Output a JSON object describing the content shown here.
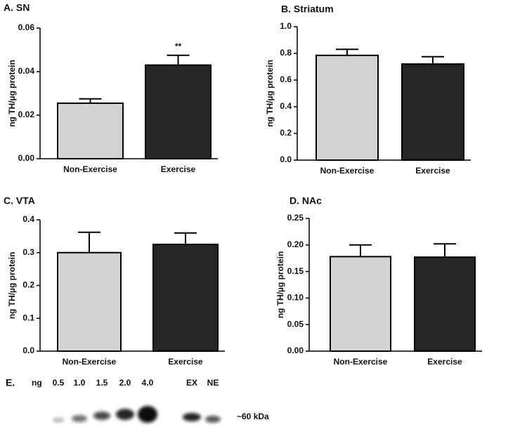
{
  "chart_data": [
    {
      "type": "bar",
      "title": "A. SN",
      "y_label": "ng TH/µg protein",
      "annotation": "**",
      "categories": [
        "Non-Exercise",
        "Exercise"
      ],
      "values": [
        0.0255,
        0.043
      ],
      "errors": [
        0.002,
        0.0045
      ],
      "colors": [
        "#d3d3d3",
        "#262626"
      ],
      "ylim": [
        0,
        0.06
      ],
      "yticks": [
        {
          "value": 0,
          "label": "0.00"
        },
        0.02,
        0.04,
        0.06
      ]
    },
    {
      "type": "bar",
      "title": "B. Striatum",
      "y_label": "ng TH/µg protein",
      "categories": [
        "Non-Exercise",
        "Exercise"
      ],
      "values": [
        0.785,
        0.72
      ],
      "errors": [
        0.045,
        0.055
      ],
      "colors": [
        "#d3d3d3",
        "#262626"
      ],
      "ylim": [
        0,
        1
      ],
      "yticks": [
        {
          "value": 0,
          "label": "0.0"
        },
        0.2,
        0.4,
        0.6,
        0.8,
        {
          "value": 1,
          "label": "1.0"
        }
      ]
    },
    {
      "type": "bar",
      "title": "C. VTA",
      "y_label": "ng TH/µg protein",
      "categories": [
        "Non-Exercise",
        "Exercise"
      ],
      "values": [
        0.3,
        0.325
      ],
      "errors": [
        0.062,
        0.035
      ],
      "colors": [
        "#d3d3d3",
        "#262626"
      ],
      "ylim": [
        0,
        0.4
      ],
      "yticks": [
        {
          "value": 0,
          "label": "0.0"
        },
        0.1,
        0.2,
        0.3,
        0.4
      ]
    },
    {
      "type": "bar",
      "title": "D. NAc",
      "y_label": "ng TH/µg protein",
      "categories": [
        "Non-Exercise",
        "Exercise"
      ],
      "values": [
        0.178,
        0.177
      ],
      "errors": [
        0.022,
        0.025
      ],
      "colors": [
        "#d3d3d3",
        "#262626"
      ],
      "ylim": [
        0,
        0.25
      ],
      "yticks": [
        {
          "value": 0,
          "label": "0.00"
        },
        0.05,
        {
          "value": 0.1,
          "label": "0.10"
        },
        0.15,
        {
          "value": 0.2,
          "label": "0.20"
        },
        0.25
      ]
    }
  ],
  "blot": {
    "title": "E.",
    "unit": "ng",
    "lanes": [
      "0.5",
      "1.0",
      "1.5",
      "2.0",
      "4.0",
      "EX",
      "NE"
    ],
    "size_label": "~60 kDa"
  }
}
